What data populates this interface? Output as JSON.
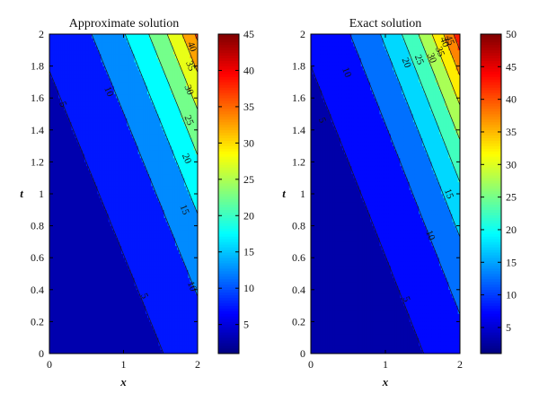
{
  "chart_data": [
    {
      "type": "heatmap",
      "title": "Approximate solution",
      "xlabel": "x",
      "ylabel": "t",
      "xlim": [
        0,
        2
      ],
      "ylim": [
        0,
        2
      ],
      "x_ticks": [
        "0",
        "1",
        "2"
      ],
      "y_ticks": [
        "0",
        "0.2",
        "0.4",
        "0.6",
        "0.8",
        "1",
        "1.2",
        "1.4",
        "1.6",
        "1.8",
        "2"
      ],
      "colormap": "jet",
      "colorbar": {
        "min": 1,
        "max": 45,
        "ticks": [
          "5",
          "10",
          "15",
          "20",
          "25",
          "30",
          "35",
          "40",
          "45"
        ]
      },
      "contour_levels": [
        5,
        10,
        15,
        20,
        25,
        30,
        35,
        40
      ],
      "contour_labels": [
        {
          "text": "5",
          "x": 0.18,
          "t": 1.56
        },
        {
          "text": "5",
          "x": 1.28,
          "t": 0.36
        },
        {
          "text": "10",
          "x": 0.8,
          "t": 1.64
        },
        {
          "text": "10",
          "x": 1.92,
          "t": 0.42
        },
        {
          "text": "15",
          "x": 1.82,
          "t": 0.9
        },
        {
          "text": "20",
          "x": 1.85,
          "t": 1.22
        },
        {
          "text": "25",
          "x": 1.88,
          "t": 1.46
        },
        {
          "text": "30",
          "x": 1.88,
          "t": 1.65
        },
        {
          "text": "35",
          "x": 1.9,
          "t": 1.8
        },
        {
          "text": "40",
          "x": 1.92,
          "t": 1.92
        }
      ]
    },
    {
      "type": "heatmap",
      "title": "Exact solution",
      "xlabel": "x",
      "ylabel": "t",
      "xlim": [
        0,
        2
      ],
      "ylim": [
        0,
        2
      ],
      "x_ticks": [
        "0",
        "1",
        "2"
      ],
      "y_ticks": [
        "0",
        "0.2",
        "0.4",
        "0.6",
        "0.8",
        "1",
        "1.2",
        "1.4",
        "1.6",
        "1.8",
        "2"
      ],
      "colormap": "jet",
      "colorbar": {
        "min": 1,
        "max": 50,
        "ticks": [
          "5",
          "10",
          "15",
          "20",
          "25",
          "30",
          "35",
          "40",
          "45",
          "50"
        ]
      },
      "contour_levels": [
        5,
        10,
        15,
        20,
        25,
        30,
        35,
        40,
        45
      ],
      "contour_labels": [
        {
          "text": "5",
          "x": 0.15,
          "t": 1.46
        },
        {
          "text": "5",
          "x": 1.28,
          "t": 0.34
        },
        {
          "text": "10",
          "x": 0.48,
          "t": 1.76
        },
        {
          "text": "10",
          "x": 1.6,
          "t": 0.74
        },
        {
          "text": "15",
          "x": 1.85,
          "t": 1.0
        },
        {
          "text": "20",
          "x": 1.28,
          "t": 1.82
        },
        {
          "text": "25",
          "x": 1.45,
          "t": 1.84
        },
        {
          "text": "30",
          "x": 1.62,
          "t": 1.85
        },
        {
          "text": "35",
          "x": 1.73,
          "t": 1.89
        },
        {
          "text": "40",
          "x": 1.79,
          "t": 1.95
        },
        {
          "text": "45",
          "x": 1.86,
          "t": 1.96
        }
      ]
    }
  ]
}
